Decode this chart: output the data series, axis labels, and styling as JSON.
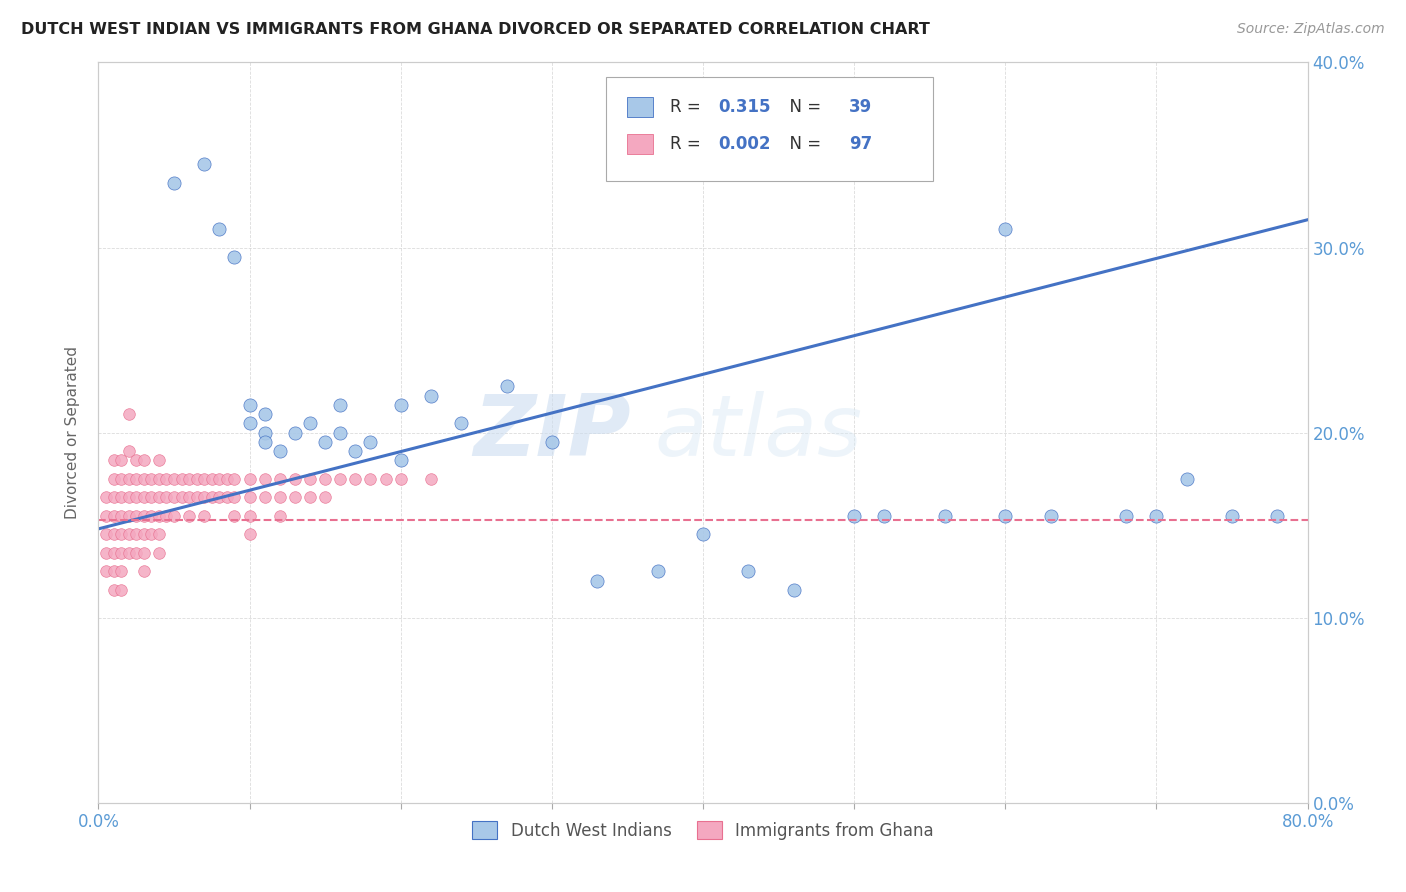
{
  "title": "DUTCH WEST INDIAN VS IMMIGRANTS FROM GHANA DIVORCED OR SEPARATED CORRELATION CHART",
  "source": "Source: ZipAtlas.com",
  "ylabel_label": "Divorced or Separated",
  "xlim": [
    0,
    0.8
  ],
  "ylim": [
    0,
    0.4
  ],
  "legend_label1": "Dutch West Indians",
  "legend_label2": "Immigrants from Ghana",
  "color_blue": "#a8c8e8",
  "color_pink": "#f4a8c0",
  "trendline1_color": "#4472c4",
  "trendline2_color": "#e87090",
  "axis_color": "#5b9bd5",
  "watermark_zip": "ZIP",
  "watermark_atlas": "atlas",
  "background_color": "#ffffff",
  "grid_color": "#cccccc",
  "blue_points_x": [
    0.05,
    0.07,
    0.08,
    0.09,
    0.1,
    0.1,
    0.11,
    0.11,
    0.11,
    0.12,
    0.13,
    0.14,
    0.15,
    0.16,
    0.16,
    0.17,
    0.18,
    0.2,
    0.22,
    0.24,
    0.27,
    0.3,
    0.33,
    0.37,
    0.4,
    0.43,
    0.46,
    0.5,
    0.52,
    0.56,
    0.6,
    0.63,
    0.68,
    0.7,
    0.72,
    0.75,
    0.78,
    0.6,
    0.2
  ],
  "blue_points_y": [
    0.335,
    0.345,
    0.31,
    0.295,
    0.215,
    0.205,
    0.21,
    0.2,
    0.195,
    0.19,
    0.2,
    0.205,
    0.195,
    0.215,
    0.2,
    0.19,
    0.195,
    0.215,
    0.22,
    0.205,
    0.225,
    0.195,
    0.12,
    0.125,
    0.145,
    0.125,
    0.115,
    0.155,
    0.155,
    0.155,
    0.155,
    0.155,
    0.155,
    0.155,
    0.175,
    0.155,
    0.155,
    0.31,
    0.185
  ],
  "pink_points_x": [
    0.005,
    0.005,
    0.005,
    0.005,
    0.005,
    0.01,
    0.01,
    0.01,
    0.01,
    0.01,
    0.01,
    0.01,
    0.01,
    0.015,
    0.015,
    0.015,
    0.015,
    0.015,
    0.015,
    0.015,
    0.015,
    0.02,
    0.02,
    0.02,
    0.02,
    0.02,
    0.02,
    0.02,
    0.025,
    0.025,
    0.025,
    0.025,
    0.025,
    0.025,
    0.03,
    0.03,
    0.03,
    0.03,
    0.03,
    0.03,
    0.03,
    0.035,
    0.035,
    0.035,
    0.035,
    0.04,
    0.04,
    0.04,
    0.04,
    0.04,
    0.04,
    0.045,
    0.045,
    0.045,
    0.05,
    0.05,
    0.05,
    0.055,
    0.055,
    0.06,
    0.06,
    0.06,
    0.065,
    0.065,
    0.07,
    0.07,
    0.07,
    0.075,
    0.075,
    0.08,
    0.08,
    0.085,
    0.085,
    0.09,
    0.09,
    0.09,
    0.1,
    0.1,
    0.1,
    0.1,
    0.11,
    0.11,
    0.12,
    0.12,
    0.12,
    0.13,
    0.13,
    0.14,
    0.14,
    0.15,
    0.15,
    0.16,
    0.17,
    0.18,
    0.19,
    0.2,
    0.22
  ],
  "pink_points_y": [
    0.165,
    0.155,
    0.145,
    0.135,
    0.125,
    0.185,
    0.175,
    0.165,
    0.155,
    0.145,
    0.135,
    0.125,
    0.115,
    0.185,
    0.175,
    0.165,
    0.155,
    0.145,
    0.135,
    0.125,
    0.115,
    0.21,
    0.19,
    0.175,
    0.165,
    0.155,
    0.145,
    0.135,
    0.185,
    0.175,
    0.165,
    0.155,
    0.145,
    0.135,
    0.185,
    0.175,
    0.165,
    0.155,
    0.145,
    0.135,
    0.125,
    0.175,
    0.165,
    0.155,
    0.145,
    0.185,
    0.175,
    0.165,
    0.155,
    0.145,
    0.135,
    0.175,
    0.165,
    0.155,
    0.175,
    0.165,
    0.155,
    0.175,
    0.165,
    0.175,
    0.165,
    0.155,
    0.175,
    0.165,
    0.175,
    0.165,
    0.155,
    0.175,
    0.165,
    0.175,
    0.165,
    0.175,
    0.165,
    0.175,
    0.165,
    0.155,
    0.175,
    0.165,
    0.155,
    0.145,
    0.175,
    0.165,
    0.175,
    0.165,
    0.155,
    0.175,
    0.165,
    0.175,
    0.165,
    0.175,
    0.165,
    0.175,
    0.175,
    0.175,
    0.175,
    0.175,
    0.175
  ],
  "trendline1_x": [
    0.0,
    0.8
  ],
  "trendline1_y": [
    0.148,
    0.315
  ],
  "trendline2_x": [
    0.0,
    0.8
  ],
  "trendline2_y": [
    0.153,
    0.153
  ],
  "xtick_vals": [
    0.0,
    0.1,
    0.2,
    0.3,
    0.4,
    0.5,
    0.6,
    0.7,
    0.8
  ],
  "ytick_vals": [
    0.0,
    0.1,
    0.2,
    0.3,
    0.4
  ],
  "ytick_labels": [
    "0.0%",
    "10.0%",
    "20.0%",
    "30.0%",
    "40.0%"
  ]
}
